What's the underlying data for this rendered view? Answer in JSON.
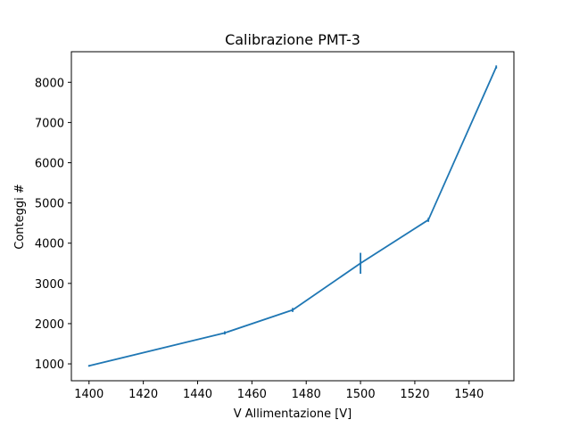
{
  "chart_data": {
    "type": "line",
    "title": "Calibrazione PMT-3",
    "xlabel": "V Allimentazione [V]",
    "ylabel": "Conteggi #",
    "xlim": [
      1393.5,
      1556.5
    ],
    "ylim": [
      580,
      8760
    ],
    "xticks": [
      1400,
      1420,
      1440,
      1460,
      1480,
      1500,
      1520,
      1540
    ],
    "yticks": [
      1000,
      2000,
      3000,
      4000,
      5000,
      6000,
      7000,
      8000
    ],
    "grid": false,
    "color": "#1f77b4",
    "series": [
      {
        "x": [
          1400,
          1450,
          1475,
          1500,
          1525,
          1550
        ],
        "y": [
          950,
          1770,
          2340,
          3500,
          4580,
          8380
        ],
        "yerr": [
          20,
          40,
          50,
          260,
          50,
          40
        ]
      }
    ]
  }
}
